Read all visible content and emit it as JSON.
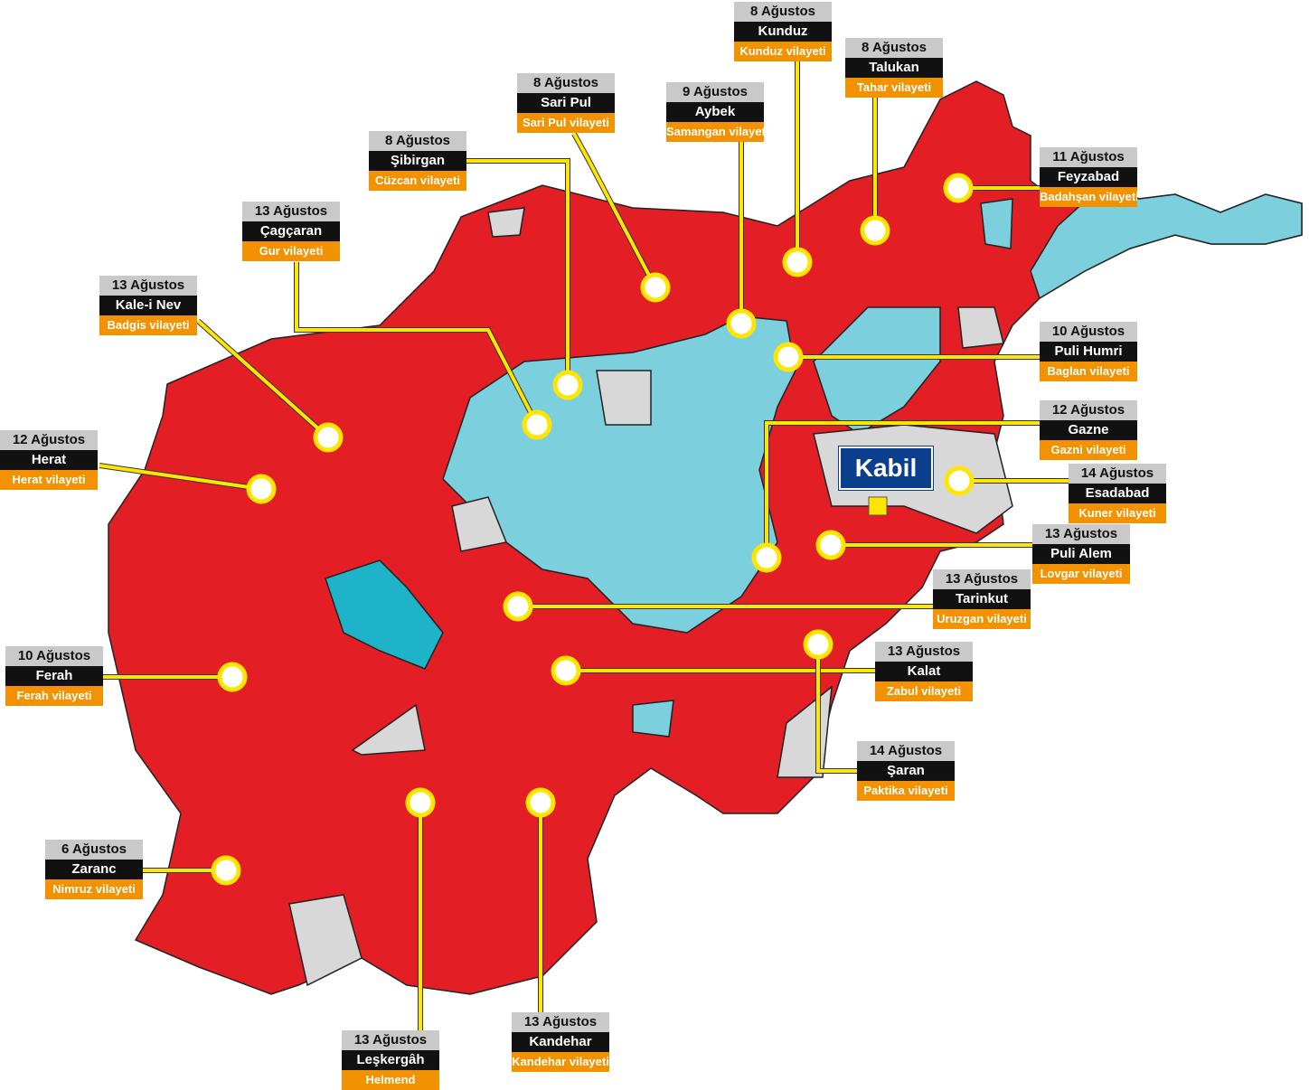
{
  "capital": "Kabil",
  "labels": [
    {
      "date": "8 Ağustos",
      "city": "Kunduz",
      "province": "Kunduz vilayeti"
    },
    {
      "date": "8 Ağustos",
      "city": "Talukan",
      "province": "Tahar vilayeti"
    },
    {
      "date": "9 Ağustos",
      "city": "Aybek",
      "province": "Samangan vilayeti"
    },
    {
      "date": "8 Ağustos",
      "city": "Sari Pul",
      "province": "Sari Pul vilayeti"
    },
    {
      "date": "8 Ağustos",
      "city": "Şibirgan",
      "province": "Cüzcan vilayeti"
    },
    {
      "date": "13 Ağustos",
      "city": "Çagçaran",
      "province": "Gur vilayeti"
    },
    {
      "date": "13 Ağustos",
      "city": "Kale-i Nev",
      "province": "Badgis vilayeti"
    },
    {
      "date": "12 Ağustos",
      "city": "Herat",
      "province": "Herat vilayeti"
    },
    {
      "date": "10 Ağustos",
      "city": "Ferah",
      "province": "Ferah vilayeti"
    },
    {
      "date": "6 Ağustos",
      "city": "Zaranc",
      "province": "Nimruz vilayeti"
    },
    {
      "date": "13 Ağustos",
      "city": "Leşkergâh",
      "province": "Helmend"
    },
    {
      "date": "13 Ağustos",
      "city": "Kandehar",
      "province": "Kandehar vilayeti"
    },
    {
      "date": "11 Ağustos",
      "city": "Feyzabad",
      "province": "Badahşan vilayeti"
    },
    {
      "date": "10 Ağustos",
      "city": "Puli Humri",
      "province": "Baglan vilayeti"
    },
    {
      "date": "12 Ağustos",
      "city": "Gazne",
      "province": "Gazni vilayeti"
    },
    {
      "date": "14 Ağustos",
      "city": "Esadabad",
      "province": "Kuner vilayeti"
    },
    {
      "date": "13 Ağustos",
      "city": "Puli Alem",
      "province": "Lovgar vilayeti"
    },
    {
      "date": "13 Ağustos",
      "city": "Tarinkut",
      "province": "Uruzgan vilayeti"
    },
    {
      "date": "13 Ağustos",
      "city": "Kalat",
      "province": "Zabul vilayeti"
    },
    {
      "date": "14 Ağustos",
      "city": "Şaran",
      "province": "Paktika vilayeti"
    }
  ]
}
